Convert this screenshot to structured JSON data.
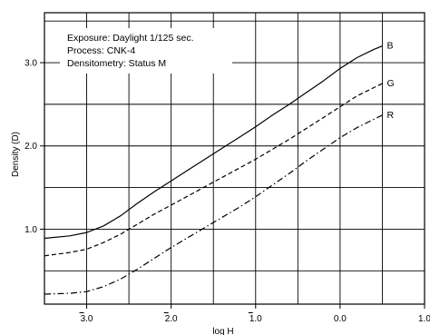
{
  "chart_data": {
    "type": "line",
    "xlabel": "log H",
    "ylabel": "Density (D)",
    "xlim": [
      -3.5,
      1.0
    ],
    "ylim": [
      0.1,
      3.6
    ],
    "grid": true,
    "x_ticks": [
      {
        "value": -3.0,
        "label": "3.0",
        "bar": true
      },
      {
        "value": -2.0,
        "label": "2.0",
        "bar": true
      },
      {
        "value": -1.0,
        "label": "1.0",
        "bar": true
      },
      {
        "value": 0.0,
        "label": "0.0",
        "bar": false
      },
      {
        "value": 1.0,
        "label": "1.0",
        "bar": false
      }
    ],
    "y_ticks": [
      {
        "value": 1.0,
        "label": "1.0"
      },
      {
        "value": 2.0,
        "label": "2.0"
      },
      {
        "value": 3.0,
        "label": "3.0"
      }
    ],
    "annotations": [
      "Exposure: Daylight 1/125 sec.",
      "Process: CNK-4",
      "Densitometry: Status M"
    ],
    "series": [
      {
        "name": "B",
        "dash": "solid",
        "x": [
          -3.5,
          -3.2,
          -3.0,
          -2.8,
          -2.6,
          -2.4,
          -2.2,
          -2.0,
          -1.8,
          -1.6,
          -1.4,
          -1.2,
          -1.0,
          -0.8,
          -0.6,
          -0.4,
          -0.2,
          0.0,
          0.2,
          0.4,
          0.5
        ],
        "y": [
          0.89,
          0.92,
          0.96,
          1.04,
          1.16,
          1.31,
          1.45,
          1.58,
          1.71,
          1.84,
          1.97,
          2.1,
          2.23,
          2.37,
          2.5,
          2.64,
          2.78,
          2.93,
          3.06,
          3.16,
          3.2
        ]
      },
      {
        "name": "G",
        "dash": "dashed",
        "x": [
          -3.5,
          -3.2,
          -3.0,
          -2.8,
          -2.6,
          -2.4,
          -2.2,
          -2.0,
          -1.8,
          -1.6,
          -1.4,
          -1.2,
          -1.0,
          -0.8,
          -0.6,
          -0.4,
          -0.2,
          0.0,
          0.2,
          0.4,
          0.5
        ],
        "y": [
          0.68,
          0.72,
          0.76,
          0.84,
          0.94,
          1.06,
          1.18,
          1.29,
          1.4,
          1.51,
          1.62,
          1.73,
          1.84,
          1.96,
          2.08,
          2.21,
          2.34,
          2.47,
          2.6,
          2.7,
          2.75
        ]
      },
      {
        "name": "R",
        "dash": "dashdot",
        "x": [
          -3.5,
          -3.2,
          -3.0,
          -2.8,
          -2.6,
          -2.4,
          -2.2,
          -2.0,
          -1.8,
          -1.6,
          -1.4,
          -1.2,
          -1.0,
          -0.8,
          -0.6,
          -0.4,
          -0.2,
          0.0,
          0.2,
          0.4,
          0.5
        ],
        "y": [
          0.22,
          0.23,
          0.25,
          0.31,
          0.4,
          0.52,
          0.65,
          0.78,
          0.9,
          1.02,
          1.14,
          1.26,
          1.39,
          1.53,
          1.67,
          1.82,
          1.96,
          2.1,
          2.22,
          2.32,
          2.37
        ]
      }
    ]
  }
}
